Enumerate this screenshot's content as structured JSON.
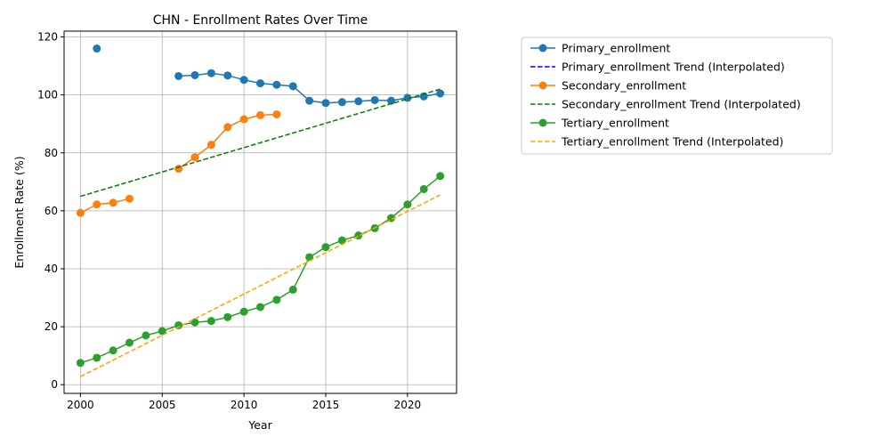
{
  "chart_data": {
    "type": "line",
    "title": "CHN - Enrollment Rates Over Time",
    "xlabel": "Year",
    "ylabel": "Enrollment Rate (%)",
    "xlim": [
      1999,
      2023
    ],
    "ylim": [
      -3,
      122
    ],
    "x_ticks": [
      2000,
      2005,
      2010,
      2015,
      2020
    ],
    "y_ticks": [
      0,
      20,
      40,
      60,
      80,
      100,
      120
    ],
    "grid": true,
    "legend_position": "outside-right",
    "series": [
      {
        "name": "Primary_enrollment",
        "color": "#1f77b4",
        "style": "solid-marker",
        "points": [
          [
            2001,
            116.0
          ],
          [
            2006,
            106.5
          ],
          [
            2007,
            106.8
          ],
          [
            2008,
            107.5
          ],
          [
            2009,
            106.7
          ],
          [
            2010,
            105.2
          ],
          [
            2011,
            104.0
          ],
          [
            2012,
            103.5
          ],
          [
            2013,
            103.0
          ],
          [
            2014,
            98.0
          ],
          [
            2015,
            97.2
          ],
          [
            2016,
            97.5
          ],
          [
            2017,
            97.8
          ],
          [
            2018,
            98.2
          ],
          [
            2019,
            98.0
          ],
          [
            2020,
            99.0
          ],
          [
            2021,
            99.5
          ],
          [
            2022,
            100.5
          ]
        ],
        "segments": [
          [
            2006,
            2022
          ]
        ]
      },
      {
        "name": "Primary_enrollment Trend (Interpolated)",
        "color": "#0000ff",
        "style": "dashed",
        "points": []
      },
      {
        "name": "Secondary_enrollment",
        "color": "#ff7f0e",
        "style": "solid-marker",
        "points": [
          [
            2000,
            59.3
          ],
          [
            2001,
            62.2
          ],
          [
            2002,
            62.8
          ],
          [
            2003,
            64.2
          ],
          [
            2006,
            74.5
          ],
          [
            2007,
            78.5
          ],
          [
            2008,
            82.8
          ],
          [
            2009,
            88.9
          ],
          [
            2010,
            91.6
          ],
          [
            2011,
            93.0
          ],
          [
            2012,
            93.3
          ]
        ],
        "segments": [
          [
            2000,
            2003
          ],
          [
            2006,
            2012
          ]
        ]
      },
      {
        "name": "Secondary_enrollment Trend (Interpolated)",
        "color": "#008000",
        "style": "dashed",
        "points": [
          [
            2000,
            65.0
          ],
          [
            2022,
            102.0
          ]
        ]
      },
      {
        "name": "Tertiary_enrollment",
        "color": "#2ca02c",
        "style": "solid-marker",
        "points": [
          [
            2000,
            7.5
          ],
          [
            2001,
            9.3
          ],
          [
            2002,
            11.8
          ],
          [
            2003,
            14.5
          ],
          [
            2004,
            17.0
          ],
          [
            2005,
            18.5
          ],
          [
            2006,
            20.5
          ],
          [
            2007,
            21.5
          ],
          [
            2008,
            22.0
          ],
          [
            2009,
            23.3
          ],
          [
            2010,
            25.2
          ],
          [
            2011,
            26.8
          ],
          [
            2012,
            29.3
          ],
          [
            2013,
            32.8
          ],
          [
            2014,
            44.0
          ],
          [
            2015,
            47.5
          ],
          [
            2016,
            49.8
          ],
          [
            2017,
            51.5
          ],
          [
            2018,
            54.0
          ],
          [
            2019,
            57.5
          ],
          [
            2020,
            62.2
          ],
          [
            2021,
            67.5
          ],
          [
            2022,
            72.0
          ]
        ],
        "segments": [
          [
            2000,
            2022
          ]
        ]
      },
      {
        "name": "Tertiary_enrollment Trend (Interpolated)",
        "color": "#ffa500",
        "style": "dashed",
        "points": [
          [
            2000,
            2.8
          ],
          [
            2022,
            65.5
          ]
        ]
      }
    ]
  }
}
